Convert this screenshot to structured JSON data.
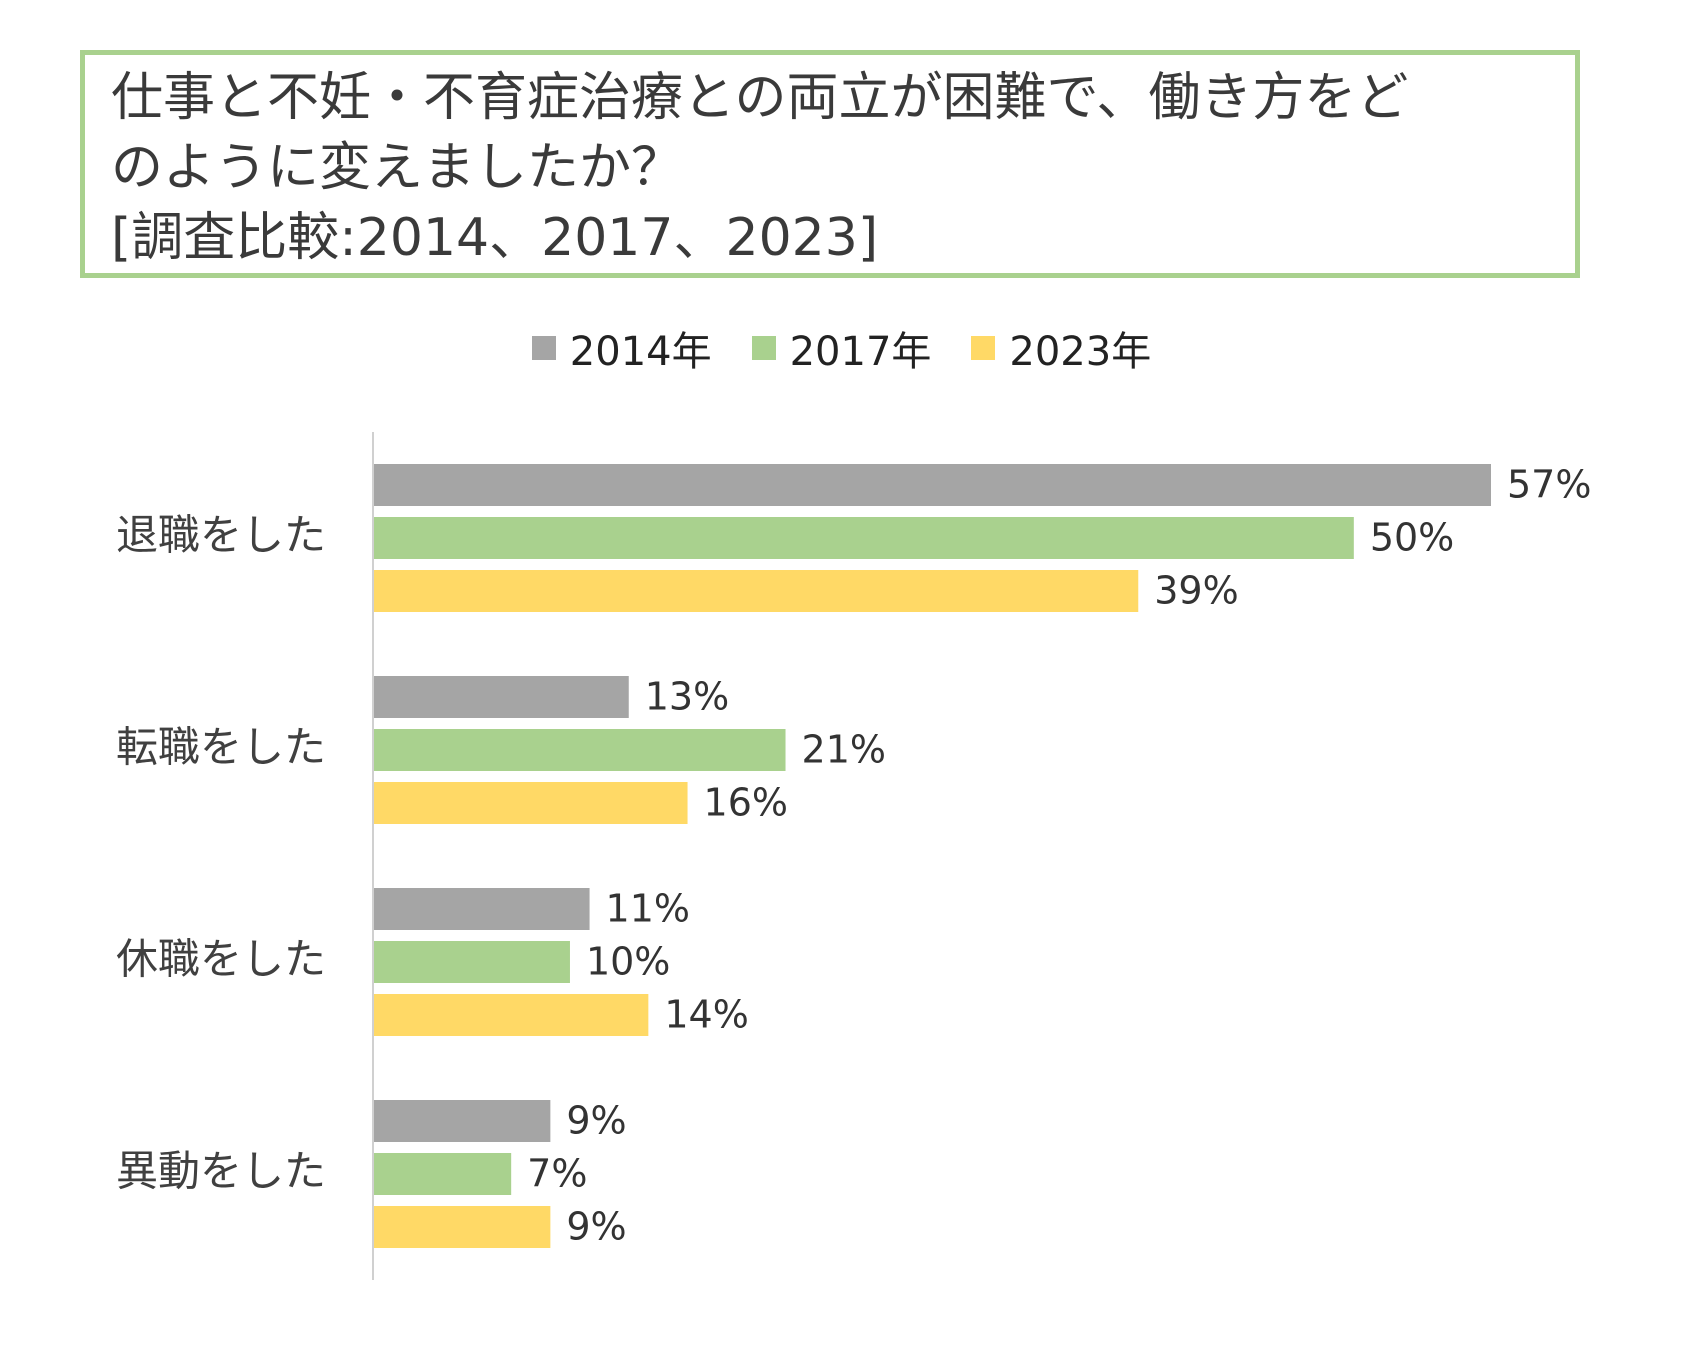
{
  "title": {
    "lines": [
      "仕事と不妊・不育症治療との両立が困難で、働き方をど",
      "のように変えましたか？",
      "[調査比較:2014、2017、2023]"
    ]
  },
  "legend": [
    {
      "label": "2014年",
      "color": "#a5a5a5"
    },
    {
      "label": "2017年",
      "color": "#a9d18e"
    },
    {
      "label": "2023年",
      "color": "#ffd966"
    }
  ],
  "chart_data": {
    "type": "bar",
    "orientation": "horizontal",
    "categories": [
      "退職をした",
      "転職をした",
      "休職をした",
      "異動をした"
    ],
    "series": [
      {
        "name": "2014年",
        "color": "#a5a5a5",
        "values": [
          57,
          13,
          11,
          9
        ],
        "labels": [
          "57%",
          "13%",
          "11%",
          "9%"
        ]
      },
      {
        "name": "2017年",
        "color": "#a9d18e",
        "values": [
          50,
          21,
          10,
          7
        ],
        "labels": [
          "50%",
          "21%",
          "10%",
          "7%"
        ]
      },
      {
        "name": "2023年",
        "color": "#ffd966",
        "values": [
          39,
          16,
          14,
          9
        ],
        "labels": [
          "39%",
          "16%",
          "14%",
          "9%"
        ]
      }
    ],
    "xlim": [
      0,
      57
    ],
    "unit": "%",
    "grid": false,
    "legend_position": "top"
  }
}
